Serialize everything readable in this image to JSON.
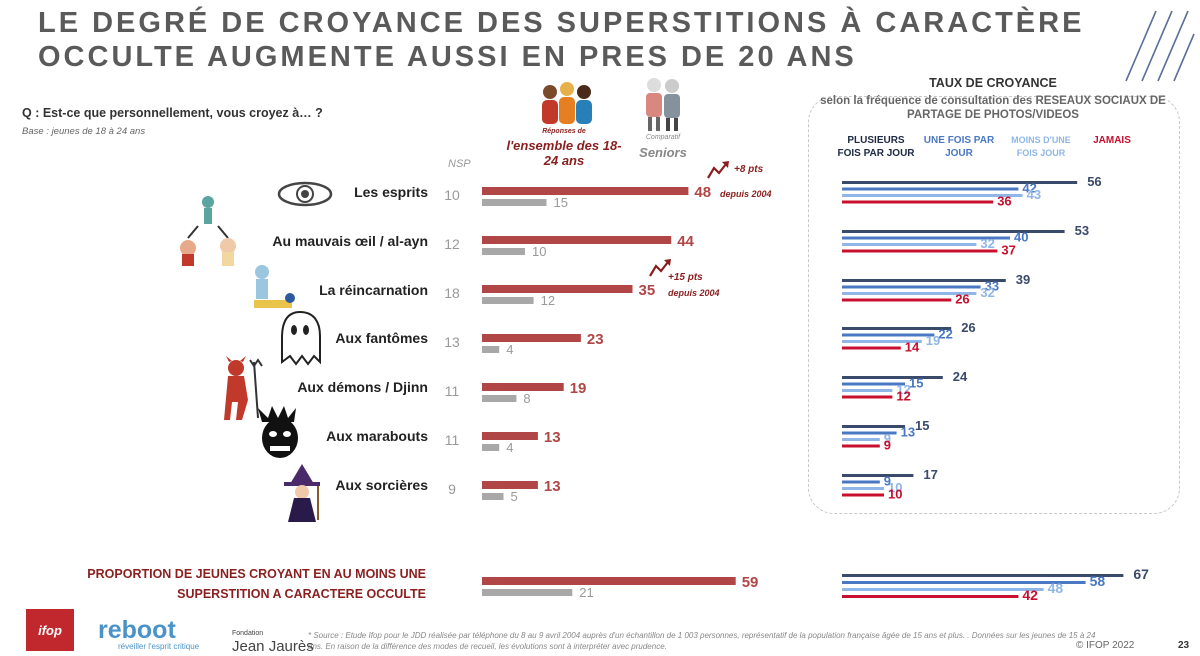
{
  "title_line1": "LE DEGRÉ DE CROYANCE DES SUPERSTITIONS À CARACTÈRE",
  "title_line2": "OCCULTE AUGMENTE AUSSI EN PRES DE 20 ANS",
  "question": "Q : Est-ce que personnellement, vous croyez à… ?",
  "base": "Base : jeunes de 18 à 24 ans",
  "nsp_header": "NSP",
  "responses_small": "Réponses de",
  "responses_big": "l'ensemble des 18-24 ans",
  "compare_small": "Comparatif",
  "compare_big": "Seniors",
  "right_title1": "TAUX DE CROYANCE",
  "right_title2": "selon la fréquence de consultation  des RESEAUX SOCIAUX DE PARTAGE DE PHOTOS/VIDEOS",
  "footer_label": "PROPORTION DE JEUNES CROYANT EN AU MOINS UNE SUPERSTITION A CARACTERE OCCULTE",
  "source": "* Source : Etude Ifop pour le JDD réalisée par téléphone du 8 au 9 avril 2004 auprès d'un échantillon de 1 003 personnes, représentatif de la population française âgée de 15 ans et plus. . Données sur les jeunes de 15 à 24 ans. En raison de la différence des modes de recueil, les évolutions sont à interpréter avec prudence.",
  "copyright": "© IFOP 2022",
  "page_number": "23",
  "logos": {
    "ifop": "ifop",
    "reboot": "reboot",
    "reboot_sub": "réveiller l'esprit critique",
    "fondation_small": "Fondation",
    "fondation_big": "Jean Jaurès"
  },
  "colors": {
    "young": "#b04646",
    "senior": "#a8a8a8",
    "plusieurs": "#3a4a6b",
    "une_fois": "#4a78c2",
    "moins": "#8fb6e6",
    "jamais": "#c8102e"
  },
  "icons": [
    "eye-icon",
    "evil-eye-icon",
    "reincarnation-icon",
    "ghost-icon",
    "devil-icon",
    "marabout-mask-icon",
    "witch-icon",
    "youth-group-icon",
    "seniors-icon",
    "trend-up-icon"
  ],
  "chart_data": [
    {
      "type": "bar",
      "orientation": "horizontal",
      "categories": [
        "Les esprits",
        "Au mauvais œil / al-ayn",
        "La réincarnation",
        "Aux fantômes",
        "Aux démons / Djinn",
        "Aux marabouts",
        "Aux sorcières"
      ],
      "nsp": [
        10,
        12,
        18,
        13,
        11,
        11,
        9
      ],
      "series": [
        {
          "name": "l'ensemble des 18-24 ans",
          "values": [
            48,
            44,
            35,
            23,
            19,
            13,
            13
          ]
        },
        {
          "name": "Seniors",
          "values": [
            15,
            10,
            12,
            4,
            8,
            4,
            5
          ]
        }
      ],
      "evolutions": [
        {
          "category": "Les esprits",
          "text": "+8 pts",
          "sub": "depuis 2004"
        },
        {
          "category": "La réincarnation",
          "text": "+15 pts",
          "sub": "depuis 2004"
        }
      ],
      "summary": {
        "label": "PROPORTION DE JEUNES CROYANT EN AU MOINS UNE SUPERSTITION A CARACTERE OCCULTE",
        "values": [
          59,
          21
        ]
      }
    },
    {
      "type": "bar",
      "orientation": "horizontal",
      "title": "TAUX DE CROYANCE",
      "categories": [
        "Les esprits",
        "Au mauvais œil / al-ayn",
        "La réincarnation",
        "Aux fantômes",
        "Aux démons / Djinn",
        "Aux marabouts",
        "Aux sorcières"
      ],
      "series": [
        {
          "name": "PLUSIEURS FOIS PAR JOUR",
          "values": [
            56,
            53,
            39,
            26,
            24,
            15,
            17
          ]
        },
        {
          "name": "UNE FOIS PAR JOUR",
          "values": [
            42,
            40,
            33,
            22,
            15,
            13,
            9
          ]
        },
        {
          "name": "MOINS D'UNE FOIS JOUR",
          "values": [
            43,
            32,
            32,
            19,
            12,
            9,
            10
          ]
        },
        {
          "name": "JAMAIS",
          "values": [
            36,
            37,
            26,
            14,
            12,
            9,
            10
          ]
        }
      ],
      "summary_values": [
        67,
        58,
        48,
        42
      ]
    }
  ]
}
